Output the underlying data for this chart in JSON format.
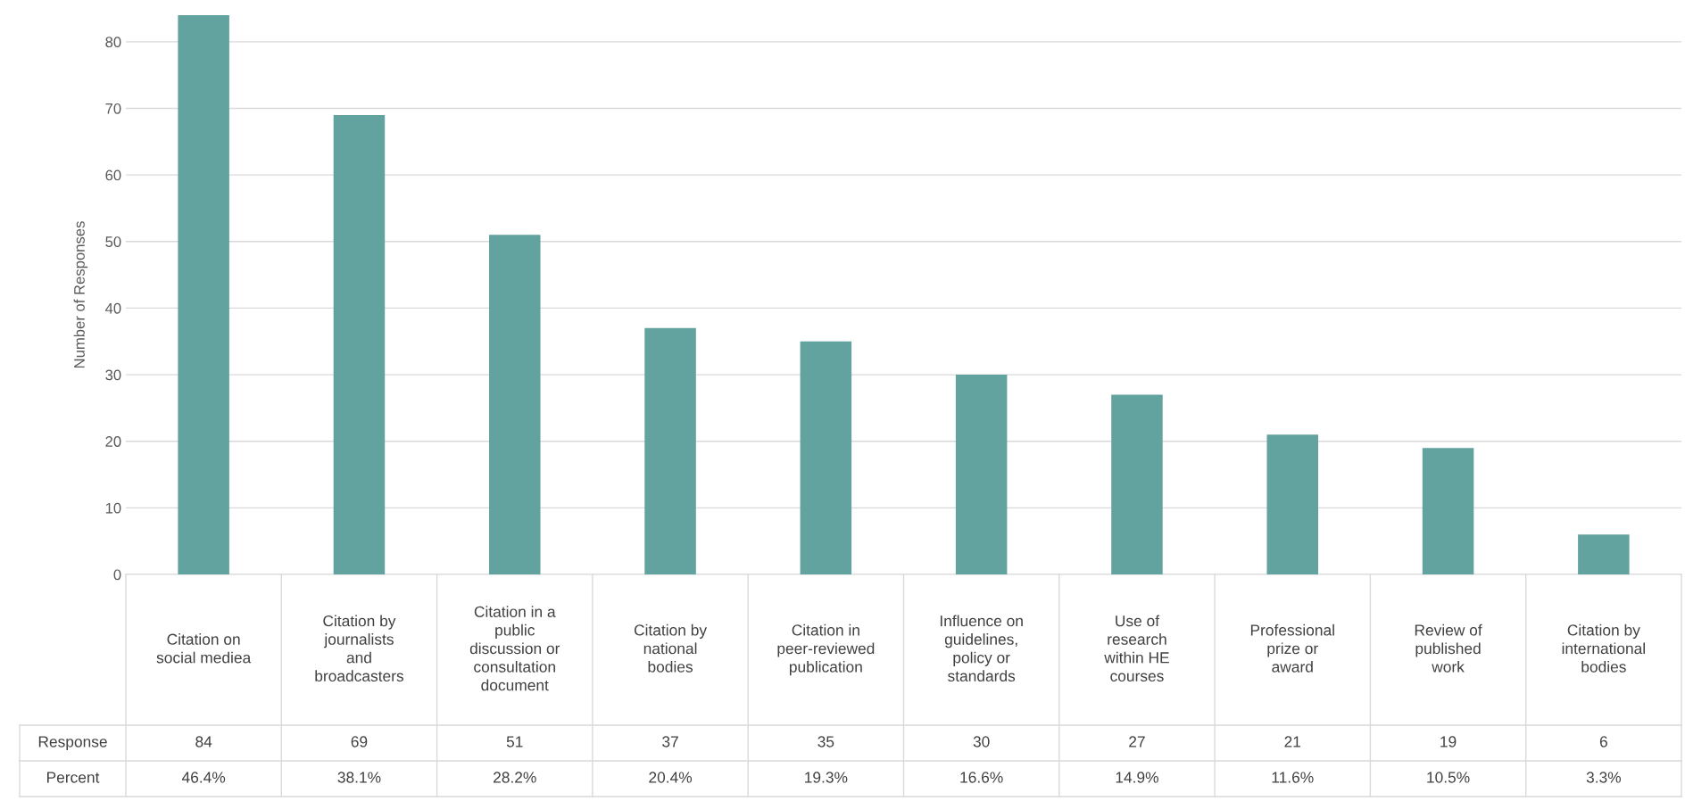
{
  "chart_data": {
    "type": "bar",
    "categories": [
      "Citation on social mediea",
      "Citation by journalists and broadcasters",
      "Citation in a public discussion or consultation document",
      "Citation by national bodies",
      "Citation in peer-reviewed publication",
      "Influence on guidelines, policy or standards",
      "Use of research within HE courses",
      "Professional prize or award",
      "Review of published work",
      "Citation by international bodies"
    ],
    "series": [
      {
        "name": "Response",
        "color": "#62a39f",
        "values": [
          84,
          69,
          51,
          37,
          35,
          30,
          27,
          21,
          19,
          6
        ]
      }
    ],
    "ylabel": "Number of Responses",
    "ylim": [
      0,
      84
    ],
    "yticks": [
      0,
      10,
      20,
      30,
      40,
      50,
      60,
      70,
      80
    ],
    "grid": "y",
    "data_labels": true,
    "annotations": [
      "Percent",
      "46.4%",
      "38.1%",
      "28.2%",
      "20.4%",
      "19.3%",
      "16.6%",
      "14.9%",
      "11.6%",
      "10.5%",
      "3.3%"
    ]
  }
}
